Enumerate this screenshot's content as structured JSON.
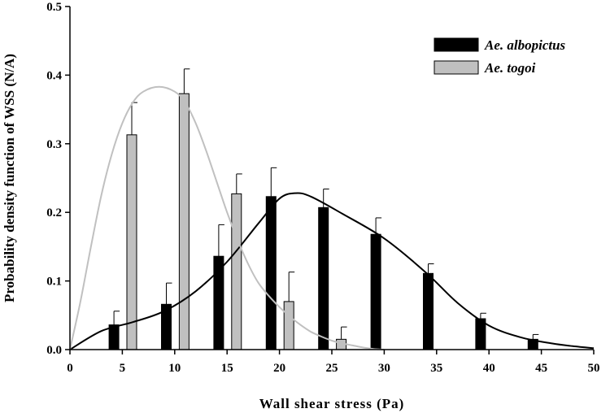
{
  "chart_data": {
    "type": "bar",
    "xlabel": "Wall shear stress (Pa)",
    "ylabel": "Probability density function of WSS (N/A)",
    "xlim": [
      0,
      50
    ],
    "ylim": [
      0,
      0.5
    ],
    "x_ticks": [
      0,
      5,
      10,
      15,
      20,
      25,
      30,
      35,
      40,
      45,
      50
    ],
    "y_ticks": [
      0.0,
      0.1,
      0.2,
      0.3,
      0.4,
      0.5
    ],
    "y_tick_labels": [
      "0.0",
      "0.1",
      "0.2",
      "0.3",
      "0.4",
      "0.5"
    ],
    "legend_position": "top-right",
    "series": [
      {
        "name": "Ae. albopictus",
        "color": "#000000",
        "x": [
          4.2,
          9.2,
          14.2,
          19.2,
          24.2,
          29.2,
          34.2,
          39.2,
          44.2
        ],
        "values": [
          0.036,
          0.066,
          0.136,
          0.223,
          0.207,
          0.168,
          0.111,
          0.045,
          0.015
        ],
        "error": [
          0.02,
          0.031,
          0.046,
          0.042,
          0.027,
          0.024,
          0.014,
          0.008,
          0.007
        ],
        "curve": [
          [
            0,
            0
          ],
          [
            3,
            0.027
          ],
          [
            6,
            0.04
          ],
          [
            9,
            0.056
          ],
          [
            12,
            0.085
          ],
          [
            15,
            0.128
          ],
          [
            18,
            0.184
          ],
          [
            20,
            0.22
          ],
          [
            21.5,
            0.228
          ],
          [
            23,
            0.223
          ],
          [
            26,
            0.198
          ],
          [
            30,
            0.162
          ],
          [
            34,
            0.112
          ],
          [
            37,
            0.068
          ],
          [
            40,
            0.035
          ],
          [
            43,
            0.018
          ],
          [
            46,
            0.009
          ],
          [
            48,
            0.005
          ],
          [
            50,
            0.002
          ]
        ]
      },
      {
        "name": "Ae. togoi",
        "color": "#c0c0c0",
        "x": [
          5.9,
          10.9,
          15.9,
          20.9,
          25.9
        ],
        "values": [
          0.313,
          0.373,
          0.227,
          0.07,
          0.015
        ],
        "error": [
          0.047,
          0.036,
          0.029,
          0.043,
          0.018
        ],
        "curve": [
          [
            0,
            0
          ],
          [
            1,
            0.07
          ],
          [
            2,
            0.15
          ],
          [
            3,
            0.225
          ],
          [
            4,
            0.285
          ],
          [
            5,
            0.33
          ],
          [
            6,
            0.36
          ],
          [
            7,
            0.376
          ],
          [
            8.5,
            0.383
          ],
          [
            10,
            0.376
          ],
          [
            11,
            0.36
          ],
          [
            12,
            0.33
          ],
          [
            13,
            0.29
          ],
          [
            14,
            0.245
          ],
          [
            15,
            0.2
          ],
          [
            16,
            0.16
          ],
          [
            17,
            0.125
          ],
          [
            18,
            0.097
          ],
          [
            19,
            0.078
          ],
          [
            20,
            0.062
          ],
          [
            21,
            0.048
          ],
          [
            22,
            0.036
          ],
          [
            23,
            0.026
          ],
          [
            24,
            0.019
          ],
          [
            25,
            0.013
          ],
          [
            26,
            0.009
          ],
          [
            27,
            0.006
          ],
          [
            28,
            0.003
          ],
          [
            29,
            0.001
          ],
          [
            30,
            0
          ]
        ]
      }
    ]
  }
}
